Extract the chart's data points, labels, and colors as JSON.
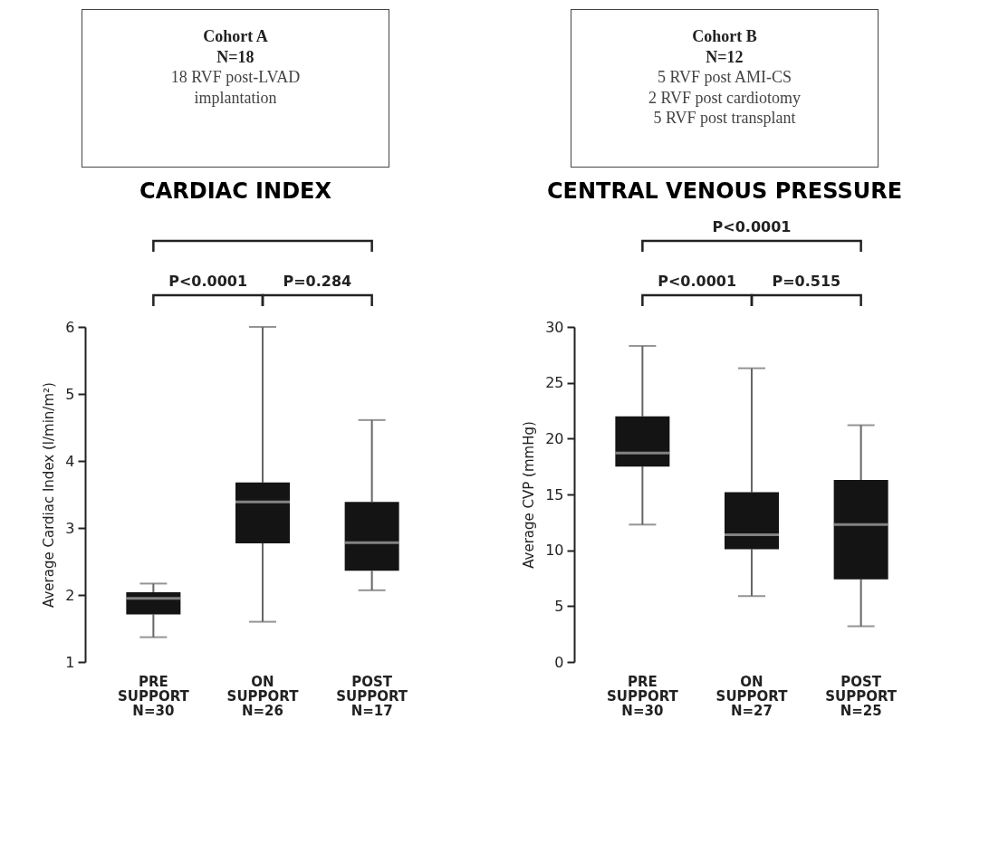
{
  "chart_data": [
    {
      "type": "box",
      "title": "CARDIAC INDEX",
      "subtitle": "Cohort A\nN=18\n18 RVF post-LVAD\nimplantation",
      "ylabel": "Average Cardiac Index (l/min/m²)",
      "categories": [
        "PRE\nSUPPORT\nN=30",
        "ON\nSUPPORT\nN=26",
        "POST\nSUPPORT\nN=17"
      ],
      "series": [
        {
          "color": "#141414",
          "boxes": [
            {
              "low": 1.37,
              "q1": 1.71,
              "median": 1.95,
              "q3": 2.04,
              "high": 2.17
            },
            {
              "low": 1.6,
              "q1": 2.77,
              "median": 3.39,
              "q3": 3.68,
              "high": 6.0
            },
            {
              "low": 2.07,
              "q1": 2.36,
              "median": 2.78,
              "q3": 3.39,
              "high": 4.61
            }
          ]
        }
      ],
      "ylim": [
        1,
        6
      ],
      "yticks": [
        1,
        2,
        3,
        4,
        5,
        6
      ],
      "grid": false,
      "annotations": [
        "P<0.0001",
        "P=0.284"
      ]
    },
    {
      "type": "box",
      "title": "CENTRAL VENOUS PRESSURE",
      "subtitle": "Cohort B\nN=12\n5 RVF post AMI-CS\n2 RVF post cardiotomy\n5 RVF post transplant",
      "ylabel": "Average CVP (mmHg)",
      "categories": [
        "PRE\nSUPPORT\nN=30",
        "ON\nSUPPORT\nN=27",
        "POST\nSUPPORT\nN=25"
      ],
      "series": [
        {
          "color": "#141414",
          "boxes": [
            {
              "low": 12.3,
              "q1": 17.5,
              "median": 18.7,
              "q3": 22.0,
              "high": 28.3
            },
            {
              "low": 5.9,
              "q1": 10.1,
              "median": 11.4,
              "q3": 15.2,
              "high": 26.3
            },
            {
              "low": 3.2,
              "q1": 7.4,
              "median": 12.3,
              "q3": 16.3,
              "high": 21.2
            }
          ]
        }
      ],
      "ylim": [
        0,
        30
      ],
      "yticks": [
        0,
        5,
        10,
        15,
        20,
        25,
        30
      ],
      "grid": false,
      "annotations": [
        "P<0.0001",
        "P=0.515",
        "P<0.0001"
      ]
    }
  ]
}
